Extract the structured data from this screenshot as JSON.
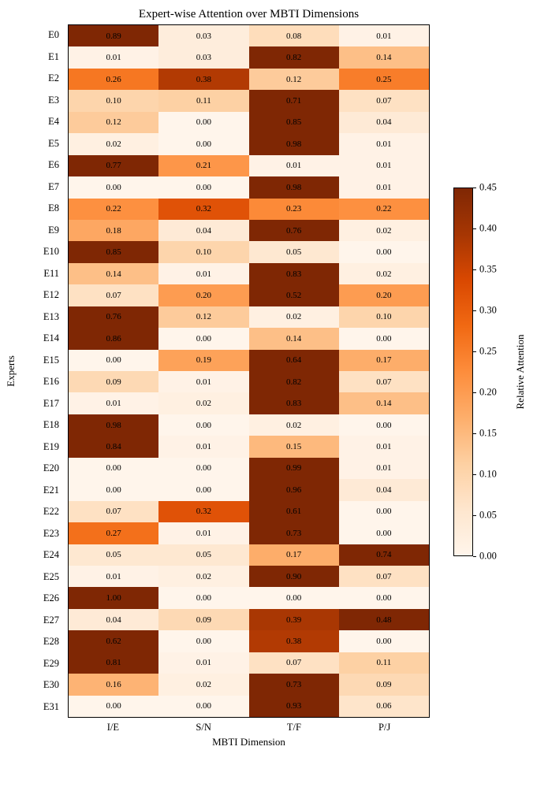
{
  "chart_data": {
    "type": "heatmap",
    "title": "Expert-wise Attention over MBTI Dimensions",
    "xlabel": "MBTI Dimension",
    "ylabel": "Experts",
    "columns": [
      "I/E",
      "S/N",
      "T/F",
      "P/J"
    ],
    "rows": [
      "E0",
      "E1",
      "E2",
      "E3",
      "E4",
      "E5",
      "E6",
      "E7",
      "E8",
      "E9",
      "E10",
      "E11",
      "E12",
      "E13",
      "E14",
      "E15",
      "E16",
      "E17",
      "E18",
      "E19",
      "E20",
      "E21",
      "E22",
      "E23",
      "E24",
      "E25",
      "E26",
      "E27",
      "E28",
      "E29",
      "E30",
      "E31"
    ],
    "values": [
      [
        0.89,
        0.03,
        0.08,
        0.01
      ],
      [
        0.01,
        0.03,
        0.82,
        0.14
      ],
      [
        0.26,
        0.38,
        0.12,
        0.25
      ],
      [
        0.1,
        0.11,
        0.71,
        0.07
      ],
      [
        0.12,
        0.0,
        0.85,
        0.04
      ],
      [
        0.02,
        0.0,
        0.98,
        0.01
      ],
      [
        0.77,
        0.21,
        0.01,
        0.01
      ],
      [
        0.0,
        0.0,
        0.98,
        0.01
      ],
      [
        0.22,
        0.32,
        0.23,
        0.22
      ],
      [
        0.18,
        0.04,
        0.76,
        0.02
      ],
      [
        0.85,
        0.1,
        0.05,
        0.0
      ],
      [
        0.14,
        0.01,
        0.83,
        0.02
      ],
      [
        0.07,
        0.2,
        0.52,
        0.2
      ],
      [
        0.76,
        0.12,
        0.02,
        0.1
      ],
      [
        0.86,
        0.0,
        0.14,
        0.0
      ],
      [
        0.0,
        0.19,
        0.64,
        0.17
      ],
      [
        0.09,
        0.01,
        0.82,
        0.07
      ],
      [
        0.01,
        0.02,
        0.83,
        0.14
      ],
      [
        0.98,
        0.0,
        0.02,
        0.0
      ],
      [
        0.84,
        0.01,
        0.15,
        0.01
      ],
      [
        0.0,
        0.0,
        0.99,
        0.01
      ],
      [
        0.0,
        0.0,
        0.96,
        0.04
      ],
      [
        0.07,
        0.32,
        0.61,
        0.0
      ],
      [
        0.27,
        0.01,
        0.73,
        0.0
      ],
      [
        0.05,
        0.05,
        0.17,
        0.74
      ],
      [
        0.01,
        0.02,
        0.9,
        0.07
      ],
      [
        1.0,
        0.0,
        0.0,
        0.0
      ],
      [
        0.04,
        0.09,
        0.39,
        0.48
      ],
      [
        0.62,
        0.0,
        0.38,
        0.0
      ],
      [
        0.81,
        0.01,
        0.07,
        0.11
      ],
      [
        0.16,
        0.02,
        0.73,
        0.09
      ],
      [
        0.0,
        0.0,
        0.93,
        0.06
      ]
    ],
    "value_format_decimals": 2,
    "annotation_color": "#000000",
    "colorbar": {
      "label": "Relative Attention",
      "min": 0.0,
      "max": 0.45,
      "tick_values": [
        0.0,
        0.05,
        0.1,
        0.15,
        0.2,
        0.25,
        0.3,
        0.35,
        0.4,
        0.45
      ]
    },
    "colormap": {
      "name": "Oranges",
      "stops": [
        {
          "t": 0.0,
          "color": "#fff5eb"
        },
        {
          "t": 0.125,
          "color": "#fee6ce"
        },
        {
          "t": 0.25,
          "color": "#fdd0a2"
        },
        {
          "t": 0.375,
          "color": "#fdae6b"
        },
        {
          "t": 0.5,
          "color": "#fd8d3c"
        },
        {
          "t": 0.625,
          "color": "#f16913"
        },
        {
          "t": 0.75,
          "color": "#d94801"
        },
        {
          "t": 0.875,
          "color": "#a63603"
        },
        {
          "t": 1.0,
          "color": "#7f2704"
        }
      ]
    },
    "legend_position": "right",
    "grid": false
  }
}
